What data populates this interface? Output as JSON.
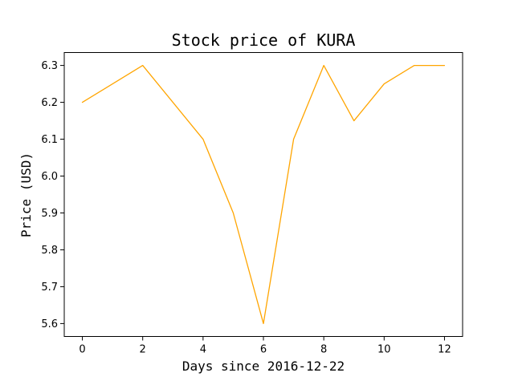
{
  "chart_data": {
    "type": "line",
    "title": "Stock price of KURA",
    "xlabel": "Days since 2016-12-22",
    "ylabel": "Price (USD)",
    "xlim": [
      -0.6,
      12.6
    ],
    "ylim": [
      5.565,
      6.335
    ],
    "xticks": [
      0,
      2,
      4,
      6,
      8,
      10,
      12
    ],
    "yticks": [
      5.6,
      5.7,
      5.8,
      5.9,
      6.0,
      6.1,
      6.2,
      6.3
    ],
    "grid": false,
    "series": [
      {
        "color": "#ffa500",
        "x": [
          0,
          2,
          4,
          5,
          6,
          7,
          8,
          9,
          10,
          11,
          12
        ],
        "y": [
          6.2,
          6.3,
          6.1,
          5.9,
          5.6,
          6.1,
          6.3,
          6.15,
          6.25,
          6.3,
          6.3
        ]
      }
    ]
  }
}
